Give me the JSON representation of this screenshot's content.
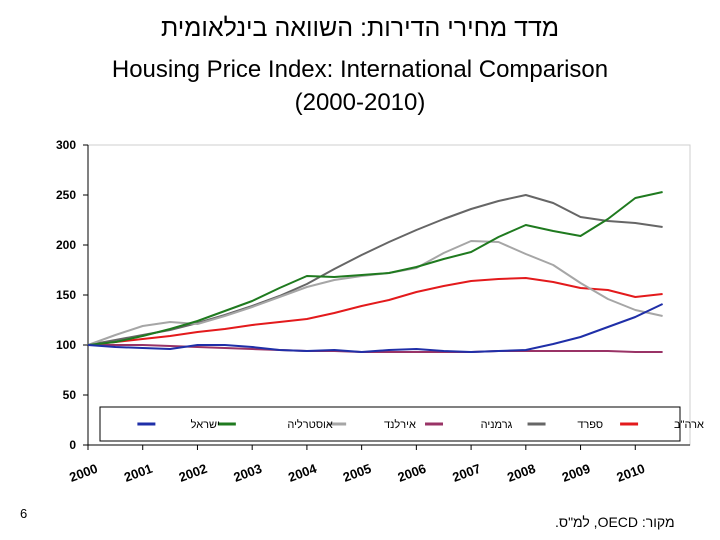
{
  "titles": {
    "hebrew": "מדד מחירי הדירות: השוואה בינלאומית",
    "english_line1": "Housing Price Index: International Comparison",
    "english_line2": "(2000-2010)"
  },
  "page_number": "6",
  "source_note": "מקור: OECD, למ\"ס.",
  "chart_data": {
    "type": "line",
    "ylim": [
      0,
      300
    ],
    "yticks": [
      0,
      50,
      100,
      150,
      200,
      250,
      300
    ],
    "xlim": [
      2000,
      2011
    ],
    "xticks": [
      "2000",
      "2001",
      "2002",
      "2003",
      "2004",
      "2005",
      "2006",
      "2007",
      "2008",
      "2009",
      "2010"
    ],
    "grid": false,
    "legend_placement": "bottom-inside",
    "series": [
      {
        "name": "ארה\"ב",
        "color": "#e31a1c",
        "x": [
          2000,
          2000.5,
          2001,
          2001.5,
          2002,
          2002.5,
          2003,
          2003.5,
          2004,
          2004.5,
          2005,
          2005.5,
          2006,
          2006.5,
          2007,
          2007.5,
          2008,
          2008.5,
          2009,
          2009.5,
          2010,
          2010.5
        ],
        "values": [
          100,
          103,
          106,
          109,
          113,
          116,
          120,
          123,
          126,
          132,
          139,
          145,
          153,
          159,
          164,
          166,
          167,
          163,
          157,
          155,
          148,
          151
        ]
      },
      {
        "name": "ספרד",
        "color": "#666666",
        "x": [
          2000,
          2000.5,
          2001,
          2001.5,
          2002,
          2002.5,
          2003,
          2003.5,
          2004,
          2004.5,
          2005,
          2005.5,
          2006,
          2006.5,
          2007,
          2007.5,
          2008,
          2008.5,
          2009,
          2009.5,
          2010,
          2010.5
        ],
        "values": [
          100,
          105,
          110,
          115,
          122,
          130,
          139,
          149,
          161,
          176,
          190,
          203,
          215,
          226,
          236,
          244,
          250,
          242,
          228,
          224,
          222,
          218
        ]
      },
      {
        "name": "גרמניה",
        "color": "#993366",
        "x": [
          2000,
          2000.5,
          2001,
          2001.5,
          2002,
          2002.5,
          2003,
          2003.5,
          2004,
          2004.5,
          2005,
          2005.5,
          2006,
          2006.5,
          2007,
          2007.5,
          2008,
          2008.5,
          2009,
          2009.5,
          2010,
          2010.5
        ],
        "values": [
          100,
          100,
          100,
          99,
          98,
          97,
          96,
          95,
          94,
          94,
          93,
          93,
          93,
          93,
          93,
          94,
          94,
          94,
          94,
          94,
          93,
          93
        ]
      },
      {
        "name": "אירלנד",
        "color": "#a6a6a6",
        "x": [
          2000,
          2000.5,
          2001,
          2001.5,
          2002,
          2002.5,
          2003,
          2003.5,
          2004,
          2004.5,
          2005,
          2005.5,
          2006,
          2006.5,
          2007,
          2007.5,
          2008,
          2008.5,
          2009,
          2009.5,
          2010,
          2010.5
        ],
        "values": [
          100,
          110,
          119,
          123,
          121,
          129,
          138,
          148,
          158,
          165,
          169,
          172,
          177,
          192,
          204,
          203,
          191,
          180,
          162,
          146,
          135,
          129
        ]
      },
      {
        "name": "אוסטרליה",
        "color": "#1f7a1f",
        "x": [
          2000,
          2000.5,
          2001,
          2001.5,
          2002,
          2002.5,
          2003,
          2003.5,
          2004,
          2004.5,
          2005,
          2005.5,
          2006,
          2006.5,
          2007,
          2007.5,
          2008,
          2008.5,
          2009,
          2009.5,
          2010,
          2010.5
        ],
        "values": [
          100,
          103,
          109,
          116,
          124,
          134,
          144,
          157,
          169,
          168,
          170,
          172,
          178,
          186,
          193,
          208,
          220,
          214,
          209,
          226,
          247,
          253
        ]
      },
      {
        "name": "ישראל",
        "color": "#1f2fa8",
        "x": [
          2000,
          2000.5,
          2001,
          2001.5,
          2002,
          2002.5,
          2003,
          2003.5,
          2004,
          2004.5,
          2005,
          2005.5,
          2006,
          2006.5,
          2007,
          2007.5,
          2008,
          2008.5,
          2009,
          2009.5,
          2010,
          2010.5
        ],
        "values": [
          100,
          98,
          97,
          96,
          100,
          100,
          98,
          95,
          94,
          95,
          93,
          95,
          96,
          94,
          93,
          94,
          95,
          101,
          108,
          118,
          128,
          141
        ]
      }
    ]
  }
}
